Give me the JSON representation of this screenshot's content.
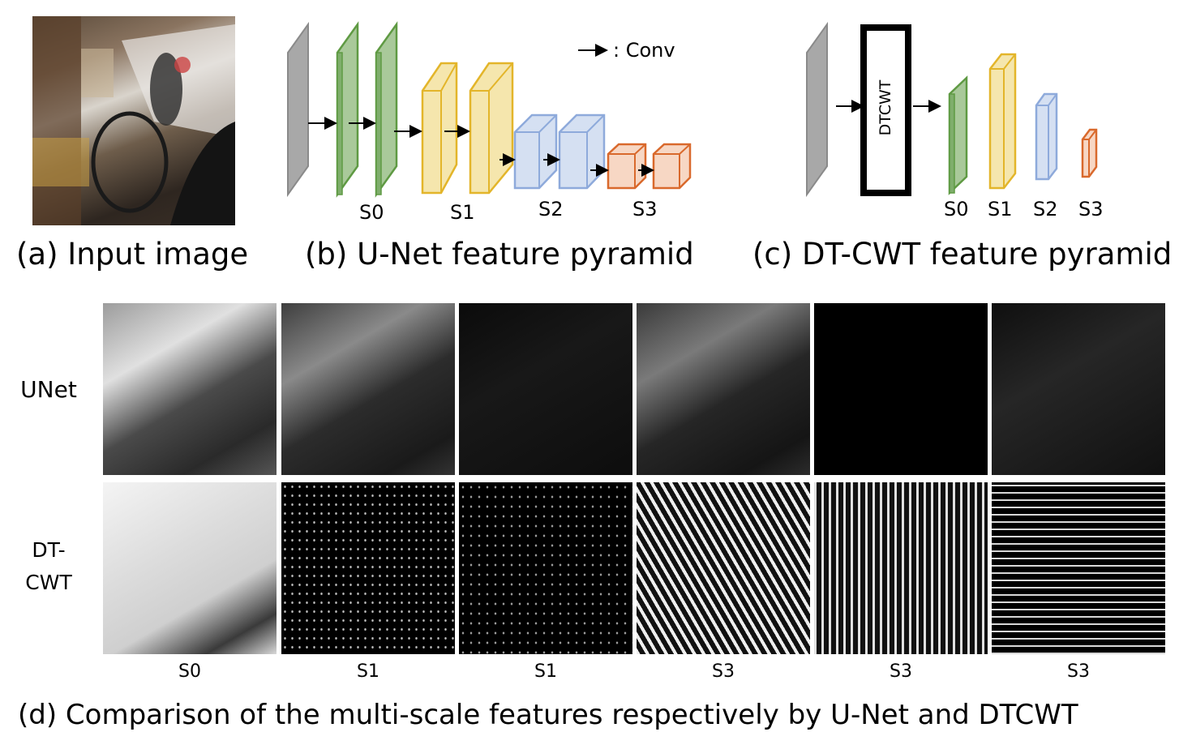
{
  "panel_a": {
    "caption": "(a) Input image"
  },
  "panel_b": {
    "caption": "(b) U-Net feature pyramid",
    "legend_text": ": Conv",
    "scale_labels": [
      "S0",
      "S1",
      "S2",
      "S3"
    ]
  },
  "panel_c": {
    "caption": "(c) DT-CWT feature pyramid",
    "transform_box_label": "DTCWT",
    "scale_labels": [
      "S0",
      "S1",
      "S2",
      "S3"
    ]
  },
  "panel_d": {
    "caption": "(d) Comparison of the multi-scale features respectively by U-Net and DTCWT",
    "row_labels": {
      "unet": "UNet",
      "dtcwt_line1": "DT-",
      "dtcwt_line2": "CWT"
    },
    "column_labels": [
      "S0",
      "S1",
      "S1",
      "S3",
      "S3",
      "S3"
    ]
  },
  "colors": {
    "input_gray": "#a8a8a8",
    "green": "#5f9a43",
    "green_fill": "#a9c99a",
    "yellow": "#e3b52a",
    "yellow_fill": "#f5e6ad",
    "blue": "#8eaadb",
    "blue_fill": "#d5e0f2",
    "orange": "#d9692c",
    "orange_fill": "#f7d7c4"
  }
}
